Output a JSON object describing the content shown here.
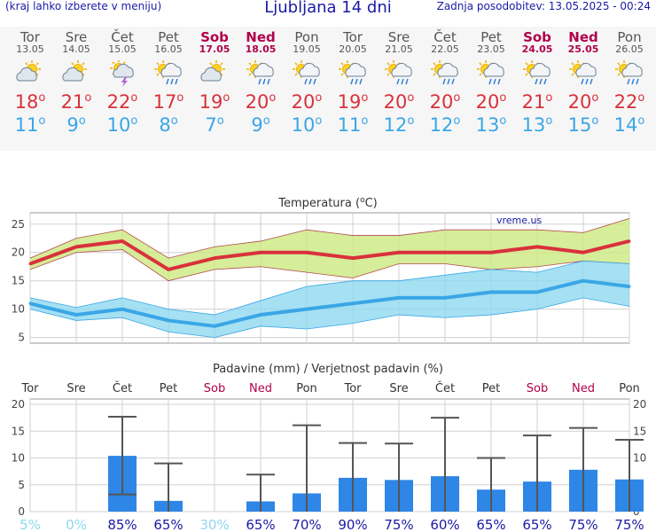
{
  "header": {
    "hint": "(kraj lahko izberete v meniju)",
    "title": "Ljubljana 14 dni",
    "updated": "Zadnja posodobitev: 13.05.2025 - 00:24"
  },
  "days": [
    {
      "name": "Tor",
      "date": "13.05",
      "weekend": false,
      "icon": "partly-cloudy-icon",
      "max": "18",
      "min": "11"
    },
    {
      "name": "Sre",
      "date": "14.05",
      "weekend": false,
      "icon": "partly-cloudy-icon",
      "max": "21",
      "min": "9"
    },
    {
      "name": "Čet",
      "date": "15.05",
      "weekend": false,
      "icon": "thunderstorm-icon",
      "max": "22",
      "min": "10"
    },
    {
      "name": "Pet",
      "date": "16.05",
      "weekend": false,
      "icon": "sun-rain-icon",
      "max": "17",
      "min": "8"
    },
    {
      "name": "Sob",
      "date": "17.05",
      "weekend": true,
      "icon": "partly-cloudy-icon",
      "max": "19",
      "min": "7"
    },
    {
      "name": "Ned",
      "date": "18.05",
      "weekend": true,
      "icon": "sun-rain-icon",
      "max": "20",
      "min": "9"
    },
    {
      "name": "Pon",
      "date": "19.05",
      "weekend": false,
      "icon": "sun-rain-icon",
      "max": "20",
      "min": "10"
    },
    {
      "name": "Tor",
      "date": "20.05",
      "weekend": false,
      "icon": "sun-rain-icon",
      "max": "19",
      "min": "11"
    },
    {
      "name": "Sre",
      "date": "21.05",
      "weekend": false,
      "icon": "sun-rain-icon",
      "max": "20",
      "min": "12"
    },
    {
      "name": "Čet",
      "date": "22.05",
      "weekend": false,
      "icon": "sun-rain-icon",
      "max": "20",
      "min": "12"
    },
    {
      "name": "Pet",
      "date": "23.05",
      "weekend": false,
      "icon": "sun-rain-icon",
      "max": "20",
      "min": "13"
    },
    {
      "name": "Sob",
      "date": "24.05",
      "weekend": true,
      "icon": "sun-rain-icon",
      "max": "21",
      "min": "13"
    },
    {
      "name": "Ned",
      "date": "25.05",
      "weekend": true,
      "icon": "sun-rain-icon",
      "max": "20",
      "min": "15"
    },
    {
      "name": "Pon",
      "date": "26.05",
      "weekend": false,
      "icon": "sun-rain-icon",
      "max": "22",
      "min": "14"
    }
  ],
  "degree_symbol": "o",
  "chart_data": [
    {
      "type": "line",
      "title": "Temperatura (°C)",
      "title_main": "Temperatura (",
      "title_sup": "o",
      "title_end": "C)",
      "watermark": "vreme.us",
      "ylim": [
        4,
        27
      ],
      "yticks": [
        5,
        10,
        15,
        20,
        25
      ],
      "grid": true,
      "series": [
        {
          "role": "max",
          "color": "#d9313b",
          "values": [
            18,
            21,
            22,
            17,
            19,
            20,
            20,
            19,
            20,
            20,
            20,
            21,
            20,
            22
          ],
          "band_upper": [
            19,
            22.5,
            24,
            19,
            21,
            22,
            24,
            23,
            23,
            24,
            24,
            24,
            23.5,
            26
          ],
          "band_lower": [
            17,
            20,
            20.5,
            15,
            17,
            17.5,
            16.5,
            15.5,
            18,
            18,
            17,
            17.5,
            18.5,
            18
          ]
        },
        {
          "role": "min",
          "color": "#3aa6e6",
          "values": [
            11,
            9,
            10,
            8,
            7,
            9,
            10,
            11,
            12,
            12,
            13,
            13,
            15,
            14
          ],
          "band_upper": [
            12,
            10.3,
            12,
            10,
            9,
            11.5,
            14,
            15,
            15,
            16,
            17,
            16.5,
            18.5,
            18
          ],
          "band_lower": [
            10,
            8,
            8.5,
            6,
            5,
            7,
            6.5,
            7.5,
            9,
            8.5,
            9,
            10,
            12,
            10.5
          ]
        }
      ]
    },
    {
      "type": "bar",
      "title": "Padavine (mm) / Verjetnost padavin (%)",
      "categories": [
        "Tor",
        "Sre",
        "Čet",
        "Pet",
        "Sob",
        "Ned",
        "Pon",
        "Tor",
        "Sre",
        "Čet",
        "Pet",
        "Sob",
        "Ned",
        "Pon"
      ],
      "weekend": [
        false,
        false,
        false,
        false,
        true,
        true,
        false,
        false,
        false,
        false,
        false,
        true,
        true,
        false
      ],
      "ylim": [
        0,
        21
      ],
      "yticks": [
        0,
        5,
        10,
        15,
        20
      ],
      "grid": true,
      "values": [
        0,
        0,
        10.4,
        2.0,
        0,
        1.9,
        3.4,
        6.3,
        5.9,
        6.6,
        4.1,
        5.6,
        7.8,
        6.0
      ],
      "error_low": [
        0,
        0,
        3.2,
        0,
        0,
        0,
        0,
        0,
        0,
        0,
        0,
        0,
        0,
        0
      ],
      "error_high": [
        0,
        0,
        17.7,
        9.0,
        0,
        6.9,
        16.1,
        12.8,
        12.7,
        17.5,
        10.0,
        14.2,
        15.6,
        13.4
      ],
      "probability": [
        "5%",
        "0%",
        "85%",
        "65%",
        "30%",
        "65%",
        "70%",
        "90%",
        "75%",
        "60%",
        "65%",
        "65%",
        "75%",
        "75%"
      ],
      "bar_color": "#2e86e6"
    }
  ]
}
